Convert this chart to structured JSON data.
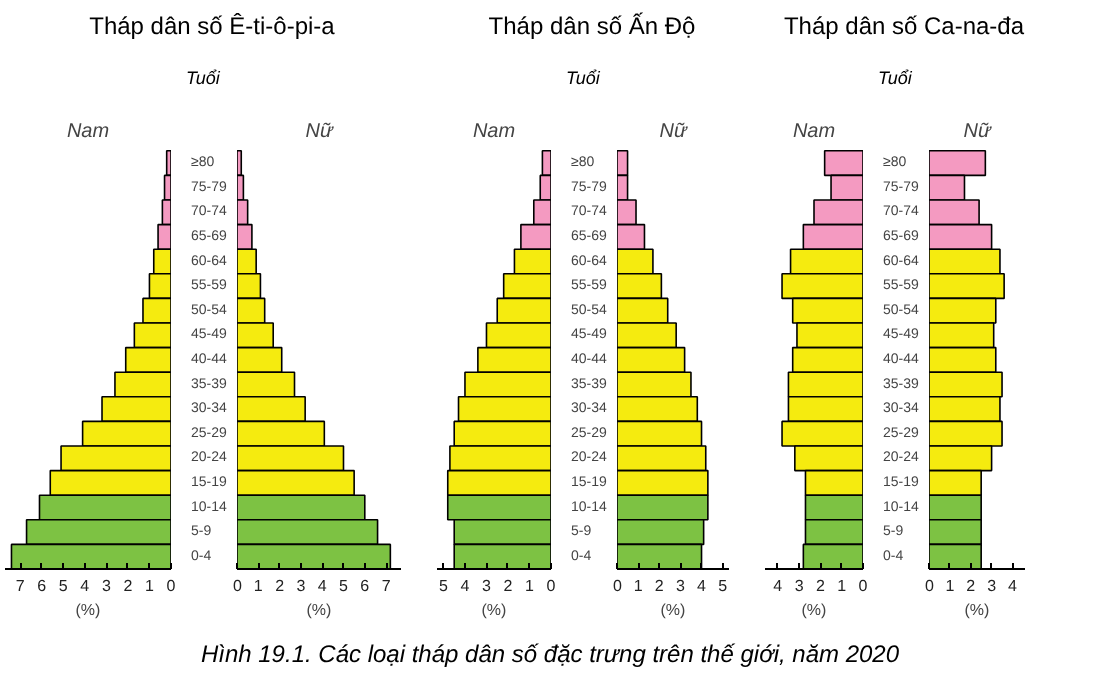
{
  "chart_data": [
    {
      "type": "bar",
      "orientation": "horizontal",
      "title": "Tháp dân số Ê-ti-ô-pi-a",
      "ylabel": "Tuổi",
      "xlabel": "(%)",
      "annotations": [
        "Hình 19.1. Các loại tháp dân số đặc trưng trên thế giới, năm 2020"
      ],
      "categories": [
        "≥80",
        "75-79",
        "70-74",
        "65-69",
        "60-64",
        "55-59",
        "50-54",
        "45-49",
        "40-44",
        "35-39",
        "30-34",
        "25-29",
        "20-24",
        "15-19",
        "10-14",
        "5-9",
        "0-4"
      ],
      "series": [
        {
          "name": "Nam",
          "colors": [
            "#f49ac1",
            "#f49ac1",
            "#f49ac1",
            "#f49ac1",
            "#f5eb0f",
            "#f5eb0f",
            "#f5eb0f",
            "#f5eb0f",
            "#f5eb0f",
            "#f5eb0f",
            "#f5eb0f",
            "#f5eb0f",
            "#f5eb0f",
            "#f5eb0f",
            "#7dc243",
            "#7dc243",
            "#7dc243"
          ],
          "values": [
            0.2,
            0.3,
            0.4,
            0.6,
            0.8,
            1.0,
            1.3,
            1.7,
            2.1,
            2.6,
            3.2,
            4.1,
            5.1,
            5.6,
            6.1,
            6.7,
            7.4
          ]
        }
      ],
      "xlim": [
        7.7,
        0
      ],
      "xticks": [
        7,
        6,
        5,
        4,
        3,
        2,
        1,
        0
      ]
    },
    {
      "type": "bar",
      "orientation": "horizontal",
      "xlabel": "(%)",
      "tick_labels": "x",
      "series": [
        {
          "name": "Nữ",
          "colors": [
            "#f49ac1",
            "#f49ac1",
            "#f49ac1",
            "#f49ac1",
            "#f5eb0f",
            "#f5eb0f",
            "#f5eb0f",
            "#f5eb0f",
            "#f5eb0f",
            "#f5eb0f",
            "#f5eb0f",
            "#f5eb0f",
            "#f5eb0f",
            "#f5eb0f",
            "#7dc243",
            "#7dc243",
            "#7dc243"
          ],
          "values": [
            0.2,
            0.3,
            0.5,
            0.7,
            0.9,
            1.1,
            1.3,
            1.7,
            2.1,
            2.7,
            3.2,
            4.1,
            5.0,
            5.5,
            6.0,
            6.6,
            7.2
          ]
        }
      ],
      "xlim": [
        0,
        7.7
      ],
      "xticks": [
        0,
        1,
        2,
        3,
        4,
        5,
        6,
        7
      ]
    },
    {
      "type": "bar",
      "orientation": "horizontal",
      "title": "Tháp dân số Ấn Độ",
      "ylabel": "Tuổi",
      "xlabel": "(%)",
      "categories": [
        "≥80",
        "75-79",
        "70-74",
        "65-69",
        "60-64",
        "55-59",
        "50-54",
        "45-49",
        "40-44",
        "35-39",
        "30-34",
        "25-29",
        "20-24",
        "15-19",
        "10-14",
        "5-9",
        "0-4"
      ],
      "series": [
        {
          "name": "Nam",
          "colors": [
            "#f49ac1",
            "#f49ac1",
            "#f49ac1",
            "#f49ac1",
            "#f5eb0f",
            "#f5eb0f",
            "#f5eb0f",
            "#f5eb0f",
            "#f5eb0f",
            "#f5eb0f",
            "#f5eb0f",
            "#f5eb0f",
            "#f5eb0f",
            "#f5eb0f",
            "#7dc243",
            "#7dc243",
            "#7dc243"
          ],
          "values": [
            0.4,
            0.5,
            0.8,
            1.4,
            1.7,
            2.2,
            2.5,
            3.0,
            3.4,
            4.0,
            4.3,
            4.5,
            4.7,
            4.8,
            4.8,
            4.5,
            4.5
          ]
        }
      ],
      "xlim": [
        5.3,
        0
      ],
      "xticks": [
        5,
        4,
        3,
        2,
        1,
        0
      ]
    },
    {
      "type": "bar",
      "orientation": "horizontal",
      "xlabel": "(%)",
      "tick_labels": "x",
      "series": [
        {
          "name": "Nữ",
          "colors": [
            "#f49ac1",
            "#f49ac1",
            "#f49ac1",
            "#f49ac1",
            "#f5eb0f",
            "#f5eb0f",
            "#f5eb0f",
            "#f5eb0f",
            "#f5eb0f",
            "#f5eb0f",
            "#f5eb0f",
            "#f5eb0f",
            "#f5eb0f",
            "#f5eb0f",
            "#7dc243",
            "#7dc243",
            "#7dc243"
          ],
          "values": [
            0.5,
            0.5,
            0.9,
            1.3,
            1.7,
            2.1,
            2.4,
            2.8,
            3.2,
            3.5,
            3.8,
            4.0,
            4.2,
            4.3,
            4.3,
            4.1,
            4.0
          ]
        }
      ],
      "xlim": [
        0,
        5.3
      ],
      "xticks": [
        0,
        1,
        2,
        3,
        4,
        5
      ]
    },
    {
      "type": "bar",
      "orientation": "horizontal",
      "title": "Tháp dân số Ca-na-đa",
      "ylabel": "Tuổi",
      "xlabel": "(%)",
      "categories": [
        "≥80",
        "75-79",
        "70-74",
        "65-69",
        "60-64",
        "55-59",
        "50-54",
        "45-49",
        "40-44",
        "35-39",
        "30-34",
        "25-29",
        "20-24",
        "15-19",
        "10-14",
        "5-9",
        "0-4"
      ],
      "series": [
        {
          "name": "Nam",
          "colors": [
            "#f49ac1",
            "#f49ac1",
            "#f49ac1",
            "#f49ac1",
            "#f5eb0f",
            "#f5eb0f",
            "#f5eb0f",
            "#f5eb0f",
            "#f5eb0f",
            "#f5eb0f",
            "#f5eb0f",
            "#f5eb0f",
            "#f5eb0f",
            "#f5eb0f",
            "#7dc243",
            "#7dc243",
            "#7dc243"
          ],
          "values": [
            1.8,
            1.5,
            2.3,
            2.8,
            3.4,
            3.8,
            3.3,
            3.1,
            3.3,
            3.5,
            3.5,
            3.8,
            3.2,
            2.7,
            2.7,
            2.7,
            2.8
          ]
        }
      ],
      "xlim": [
        4.6,
        0
      ],
      "xticks": [
        4,
        3,
        2,
        1,
        0
      ]
    },
    {
      "type": "bar",
      "orientation": "horizontal",
      "xlabel": "(%)",
      "tick_labels": "x",
      "series": [
        {
          "name": "Nữ",
          "colors": [
            "#f49ac1",
            "#f49ac1",
            "#f49ac1",
            "#f49ac1",
            "#f5eb0f",
            "#f5eb0f",
            "#f5eb0f",
            "#f5eb0f",
            "#f5eb0f",
            "#f5eb0f",
            "#f5eb0f",
            "#f5eb0f",
            "#f5eb0f",
            "#f5eb0f",
            "#7dc243",
            "#7dc243",
            "#7dc243"
          ],
          "values": [
            2.7,
            1.7,
            2.4,
            3.0,
            3.4,
            3.6,
            3.2,
            3.1,
            3.2,
            3.5,
            3.4,
            3.5,
            3.0,
            2.5,
            2.5,
            2.5,
            2.5
          ]
        }
      ],
      "xlim": [
        0,
        4.6
      ],
      "xticks": [
        0,
        1,
        2,
        3,
        4
      ]
    }
  ]
}
